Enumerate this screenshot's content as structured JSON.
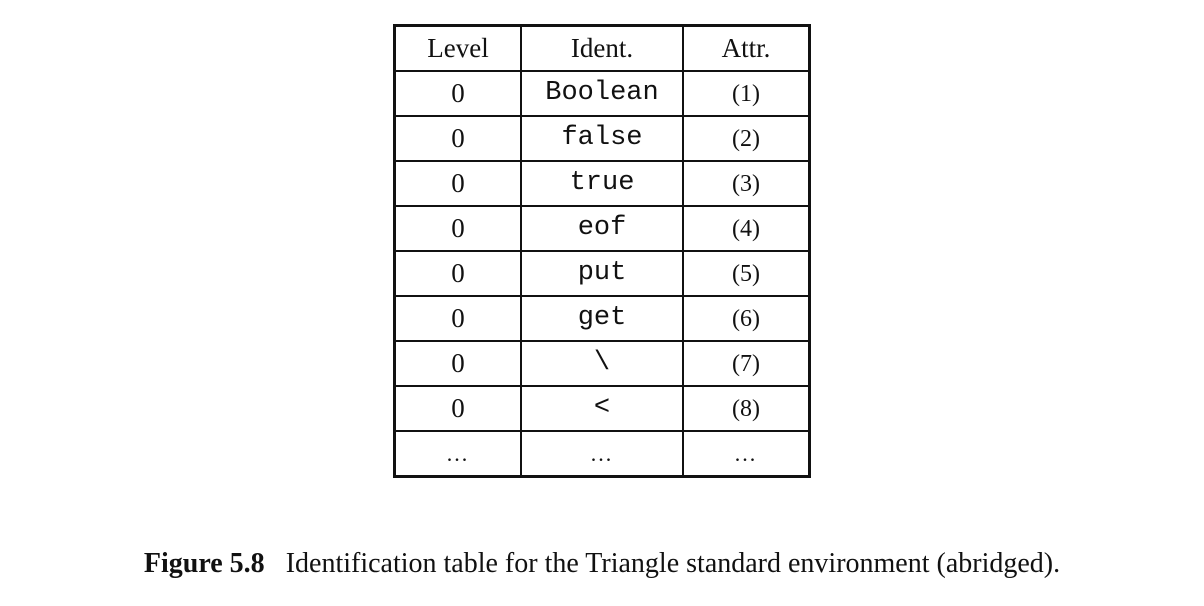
{
  "table": {
    "headers": {
      "level": "Level",
      "ident": "Ident.",
      "attr": "Attr."
    },
    "rows": [
      {
        "level": "0",
        "ident": "Boolean",
        "attr": "(1)"
      },
      {
        "level": "0",
        "ident": "false",
        "attr": "(2)"
      },
      {
        "level": "0",
        "ident": "true",
        "attr": "(3)"
      },
      {
        "level": "0",
        "ident": "eof",
        "attr": "(4)"
      },
      {
        "level": "0",
        "ident": "put",
        "attr": "(5)"
      },
      {
        "level": "0",
        "ident": "get",
        "attr": "(6)"
      },
      {
        "level": "0",
        "ident": "\\",
        "attr": "(7)"
      },
      {
        "level": "0",
        "ident": "<",
        "attr": "(8)"
      },
      {
        "level": "...",
        "ident": "...",
        "attr": "..."
      }
    ]
  },
  "caption": {
    "label": "Figure 5.8",
    "text": "Identification table for the Triangle standard environment (abridged)."
  }
}
